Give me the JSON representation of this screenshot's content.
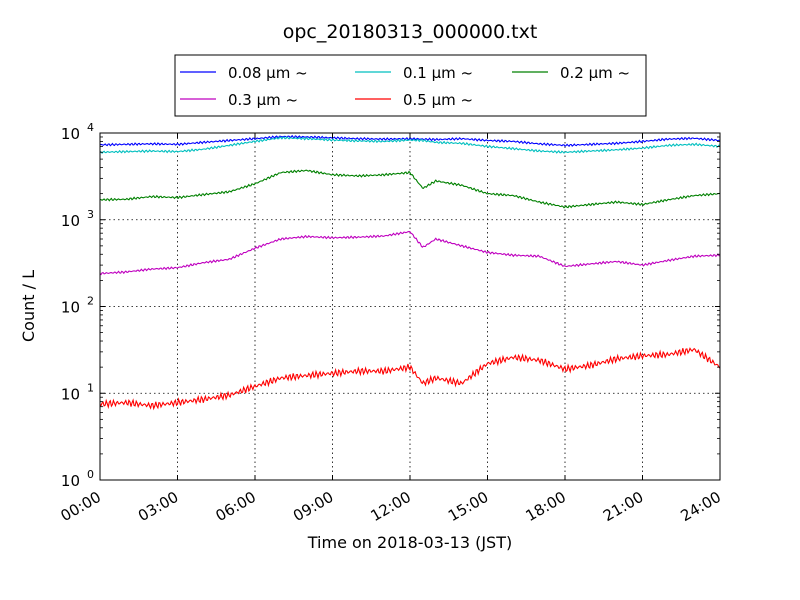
{
  "chart_data": {
    "type": "line",
    "title": "opc_20180313_000000.txt",
    "xlabel": "Time on 2018-03-13 (JST)",
    "ylabel": "Count / L",
    "x_tick_labels": [
      "00:00",
      "03:00",
      "06:00",
      "09:00",
      "12:00",
      "15:00",
      "18:00",
      "21:00",
      "24:00"
    ],
    "xlim": [
      "2018-03-13 00:00",
      "2018-03-14 00:00"
    ],
    "y_scale": "log",
    "ylim": [
      1,
      10000
    ],
    "y_ticks": [
      {
        "base": "10",
        "exp": "0"
      },
      {
        "base": "10",
        "exp": "1"
      },
      {
        "base": "10",
        "exp": "2"
      },
      {
        "base": "10",
        "exp": "3"
      },
      {
        "base": "10",
        "exp": "4"
      }
    ],
    "grid": true,
    "legend_position": "top-center",
    "x_hours": [
      0,
      1,
      2,
      3,
      4,
      5,
      6,
      7,
      8,
      9,
      10,
      11,
      12,
      12.5,
      13,
      14,
      15,
      16,
      17,
      18,
      19,
      20,
      21,
      22,
      23,
      24
    ],
    "series": [
      {
        "name": "0.08 μm ~",
        "color": "#0000ff",
        "values": [
          7300,
          7400,
          7500,
          7400,
          7800,
          8200,
          8600,
          9100,
          9000,
          8800,
          8600,
          8500,
          8600,
          8500,
          8400,
          8600,
          8200,
          8000,
          7500,
          7200,
          7400,
          7600,
          8000,
          8500,
          8700,
          8200
        ]
      },
      {
        "name": "0.1 μm ~",
        "color": "#00bfbf",
        "values": [
          6000,
          6100,
          6200,
          6100,
          6500,
          7200,
          8000,
          8800,
          8600,
          8300,
          8100,
          8000,
          8300,
          8200,
          7800,
          7600,
          7000,
          6600,
          6200,
          6000,
          6200,
          6400,
          6700,
          7200,
          7400,
          7000
        ]
      },
      {
        "name": "0.2 μm ~",
        "color": "#008000",
        "values": [
          1700,
          1720,
          1850,
          1800,
          1950,
          2100,
          2600,
          3500,
          3700,
          3300,
          3200,
          3300,
          3500,
          2300,
          2800,
          2500,
          2000,
          1900,
          1600,
          1400,
          1500,
          1600,
          1500,
          1700,
          1900,
          2000
        ]
      },
      {
        "name": "0.3 μm ~",
        "color": "#bf00bf",
        "values": [
          240,
          250,
          270,
          280,
          320,
          350,
          470,
          600,
          640,
          620,
          630,
          650,
          730,
          480,
          600,
          500,
          420,
          390,
          380,
          290,
          310,
          330,
          300,
          340,
          380,
          390
        ]
      },
      {
        "name": "0.5 μm ~",
        "color": "#ff0000",
        "values": [
          7.5,
          7.8,
          7.2,
          7.8,
          8.5,
          9.5,
          12,
          15,
          16,
          17,
          18,
          18,
          20,
          13,
          15,
          13,
          22,
          26,
          24,
          19,
          21,
          25,
          27,
          28,
          32,
          20
        ]
      }
    ]
  }
}
